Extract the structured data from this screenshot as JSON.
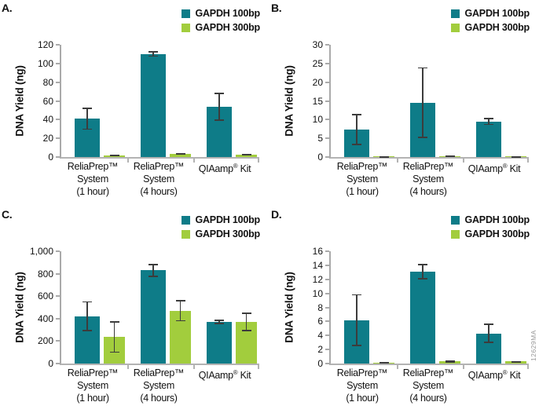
{
  "figure": {
    "watermark": "12629MA"
  },
  "legend": {
    "items": [
      {
        "label": "GAPDH 100bp",
        "color": "#0e7c88"
      },
      {
        "label": "GAPDH 300bp",
        "color": "#a2cd3d"
      }
    ]
  },
  "colors": {
    "series_100bp": "#0e7c88",
    "series_300bp": "#a2cd3d",
    "error_bar": "#3c3c3c",
    "axis": "#aaaaaa"
  },
  "chart_data": [
    {
      "type": "bar",
      "panel": "A.",
      "title": "",
      "xlabel": "",
      "ylabel": "DNA Yield (ng)",
      "ylim": [
        0,
        120
      ],
      "yticks": [
        0,
        20,
        40,
        60,
        80,
        100,
        120
      ],
      "grid": false,
      "legend_position": "top-right",
      "categories": [
        [
          "ReliaPrep™",
          "System",
          "(1 hour)"
        ],
        [
          "ReliaPrep™",
          "System",
          "(4 hours)"
        ],
        [
          "QIAamp® Kit"
        ]
      ],
      "series": [
        {
          "name": "GAPDH 100bp",
          "color": "#0e7c88",
          "values": [
            41,
            110,
            54
          ],
          "errors": [
            12,
            3,
            15
          ]
        },
        {
          "name": "GAPDH 300bp",
          "color": "#a2cd3d",
          "values": [
            1.5,
            3.5,
            2.5
          ],
          "errors": [
            0.8,
            0.6,
            0.8
          ]
        }
      ]
    },
    {
      "type": "bar",
      "panel": "B.",
      "title": "",
      "xlabel": "",
      "ylabel": "DNA Yield (ng)",
      "ylim": [
        0,
        30
      ],
      "yticks": [
        0,
        5,
        10,
        15,
        20,
        25,
        30
      ],
      "grid": false,
      "legend_position": "top-right",
      "categories": [
        [
          "ReliaPrep™",
          "System",
          "(1 hour)"
        ],
        [
          "ReliaPrep™",
          "System",
          "(4 hours)"
        ],
        [
          "QIAamp® Kit"
        ]
      ],
      "series": [
        {
          "name": "GAPDH 100bp",
          "color": "#0e7c88",
          "values": [
            7.3,
            14.5,
            9.5
          ],
          "errors": [
            4.2,
            9.5,
            1.0
          ]
        },
        {
          "name": "GAPDH 300bp",
          "color": "#a2cd3d",
          "values": [
            0.15,
            0.25,
            0.2
          ],
          "errors": [
            0.08,
            0.12,
            0.1
          ]
        }
      ]
    },
    {
      "type": "bar",
      "panel": "C.",
      "title": "",
      "xlabel": "",
      "ylabel": "DNA Yield (ng)",
      "ylim": [
        0,
        1000
      ],
      "yticks": [
        0,
        200,
        400,
        600,
        800,
        1000
      ],
      "grid": false,
      "legend_position": "top-right",
      "categories": [
        [
          "ReliaPrep™",
          "System",
          "(1 hour)"
        ],
        [
          "ReliaPrep™",
          "System",
          "(4 hours)"
        ],
        [
          "QIAamp® Kit"
        ]
      ],
      "series": [
        {
          "name": "GAPDH 100bp",
          "color": "#0e7c88",
          "values": [
            420,
            830,
            370
          ],
          "errors": [
            135,
            60,
            20
          ]
        },
        {
          "name": "GAPDH 300bp",
          "color": "#a2cd3d",
          "values": [
            235,
            470,
            370
          ],
          "errors": [
            140,
            95,
            85
          ]
        }
      ]
    },
    {
      "type": "bar",
      "panel": "D.",
      "title": "",
      "xlabel": "",
      "ylabel": "DNA Yield (ng)",
      "ylim": [
        0,
        16
      ],
      "yticks": [
        0,
        2,
        4,
        6,
        8,
        10,
        12,
        14,
        16
      ],
      "grid": false,
      "legend_position": "top-right",
      "categories": [
        [
          "ReliaPrep™",
          "System",
          "(1 hour)"
        ],
        [
          "ReliaPrep™",
          "System",
          "(4 hours)"
        ],
        [
          "QIAamp® Kit"
        ]
      ],
      "series": [
        {
          "name": "GAPDH 100bp",
          "color": "#0e7c88",
          "values": [
            6.2,
            13.1,
            4.3
          ],
          "errors": [
            3.7,
            1.1,
            1.4
          ]
        },
        {
          "name": "GAPDH 300bp",
          "color": "#a2cd3d",
          "values": [
            0.12,
            0.3,
            0.3
          ],
          "errors": [
            0.08,
            0.15,
            0.08
          ]
        }
      ]
    }
  ]
}
